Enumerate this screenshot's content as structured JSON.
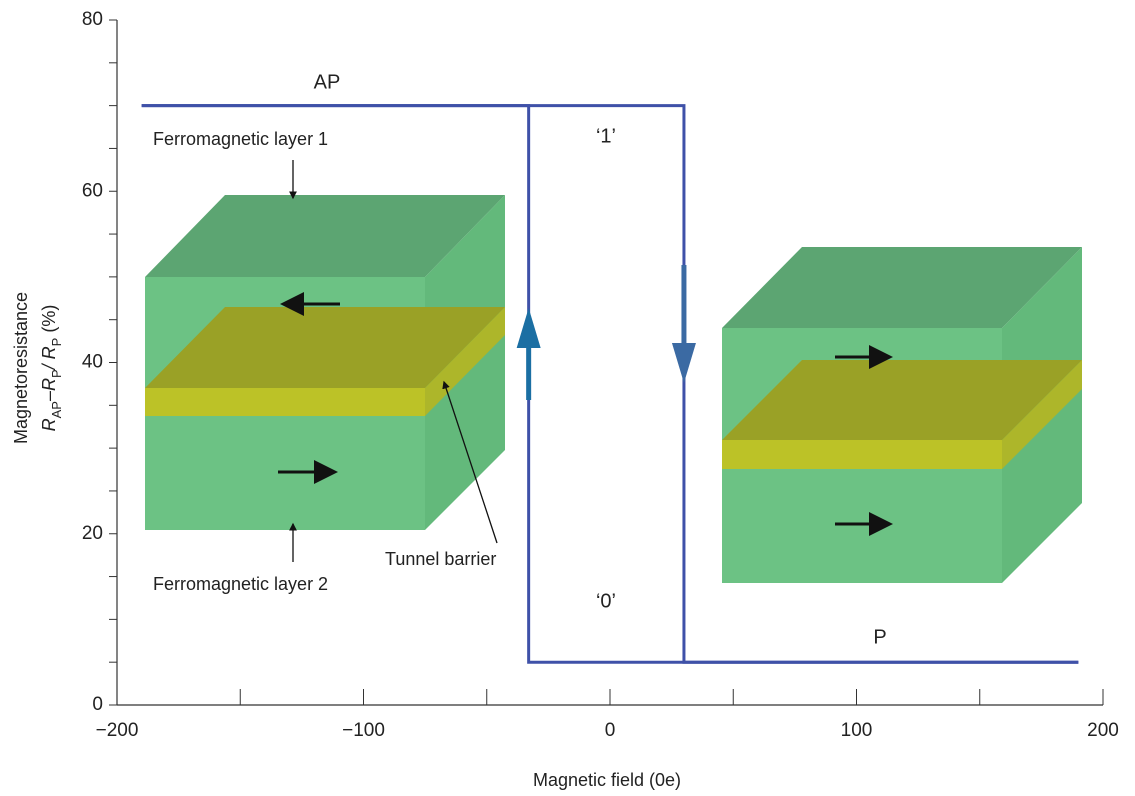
{
  "chart_data": {
    "type": "line",
    "xlabel": "Magnetic field (0e)",
    "ylabel": "Magnetoresistance",
    "ylabel_formula": [
      "R",
      "AP",
      "–R",
      "P",
      "/ R",
      "P",
      " (%)"
    ],
    "xlim": [
      -200,
      200
    ],
    "ylim": [
      0,
      80
    ],
    "xticks": [
      {
        "value": -200,
        "label": "−200"
      },
      {
        "value": -100,
        "label": "−100"
      },
      0,
      100,
      200
    ],
    "yticks": [
      0,
      20,
      40,
      60,
      80
    ],
    "xticks_minor": [
      -150,
      -50,
      50,
      150
    ],
    "yticks_minor": [
      5,
      10,
      15,
      25,
      30,
      35,
      45,
      50,
      55,
      65,
      70,
      75
    ],
    "series": [
      {
        "color": "#3f51a8",
        "x": [
          -190,
          30,
          30,
          190
        ],
        "values": [
          70,
          70,
          5,
          5
        ]
      },
      {
        "color": "#3f51a8",
        "x": [
          190,
          -33,
          -33,
          -190
        ],
        "values": [
          5,
          5,
          70,
          70
        ]
      }
    ],
    "annotations": [
      "AP",
      "‘1’",
      "‘0’",
      "P",
      "Ferromagnetic layer 1",
      "Ferromagnetic layer 2",
      "Tunnel barrier"
    ]
  }
}
